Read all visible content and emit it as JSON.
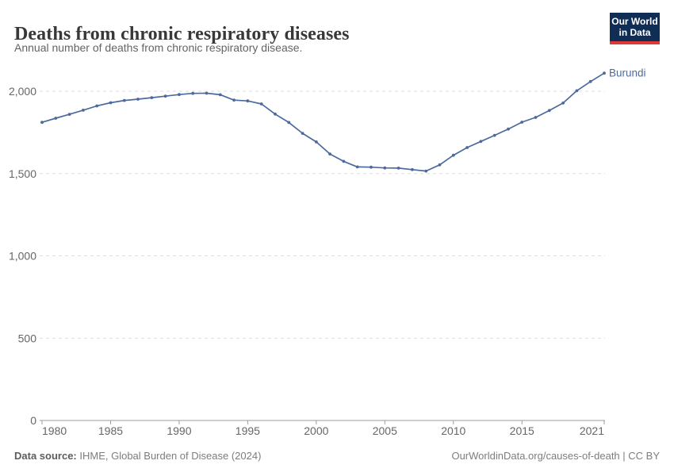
{
  "header": {
    "title": "Deaths from chronic respiratory diseases",
    "subtitle": "Annual number of deaths from chronic respiratory disease.",
    "logo": {
      "line1": "Our World",
      "line2": "in Data"
    }
  },
  "chart_data": {
    "type": "line",
    "title": "Deaths from chronic respiratory diseases",
    "x": [
      1980,
      1981,
      1982,
      1983,
      1984,
      1985,
      1986,
      1987,
      1988,
      1989,
      1990,
      1991,
      1992,
      1993,
      1994,
      1995,
      1996,
      1997,
      1998,
      1999,
      2000,
      2001,
      2002,
      2003,
      2004,
      2005,
      2006,
      2007,
      2008,
      2009,
      2010,
      2011,
      2012,
      2013,
      2014,
      2015,
      2016,
      2017,
      2018,
      2019,
      2020,
      2021
    ],
    "series": [
      {
        "name": "Burundi",
        "color": "#4c6a9c",
        "values": [
          1811,
          1836,
          1860,
          1885,
          1911,
          1930,
          1944,
          1952,
          1961,
          1970,
          1980,
          1987,
          1988,
          1979,
          1946,
          1941,
          1923,
          1861,
          1810,
          1744,
          1692,
          1619,
          1574,
          1540,
          1539,
          1534,
          1533,
          1524,
          1515,
          1553,
          1611,
          1658,
          1695,
          1732,
          1770,
          1812,
          1841,
          1883,
          1928,
          2003,
          2059,
          2110
        ]
      }
    ],
    "xlabel": "",
    "ylabel": "",
    "x_ticks": [
      1980,
      1985,
      1990,
      1995,
      2000,
      2005,
      2010,
      2015,
      2021
    ],
    "y_ticks": [
      0,
      500,
      1000,
      1500,
      2000
    ],
    "ylim": [
      0,
      2130
    ],
    "xlim": [
      1980,
      2021
    ],
    "grid": "horizontal-dashed",
    "legend_position": "end-of-line-label",
    "colors": {
      "line": "#4c6a9c",
      "gridline": "#dcdcdc",
      "axis": "#9e9e9e",
      "tick_label": "#666666"
    }
  },
  "footer": {
    "source_label": "Data source:",
    "source_text": " IHME, Global Burden of Disease (2024)",
    "license_text": "OurWorldinData.org/causes-of-death | CC BY"
  }
}
